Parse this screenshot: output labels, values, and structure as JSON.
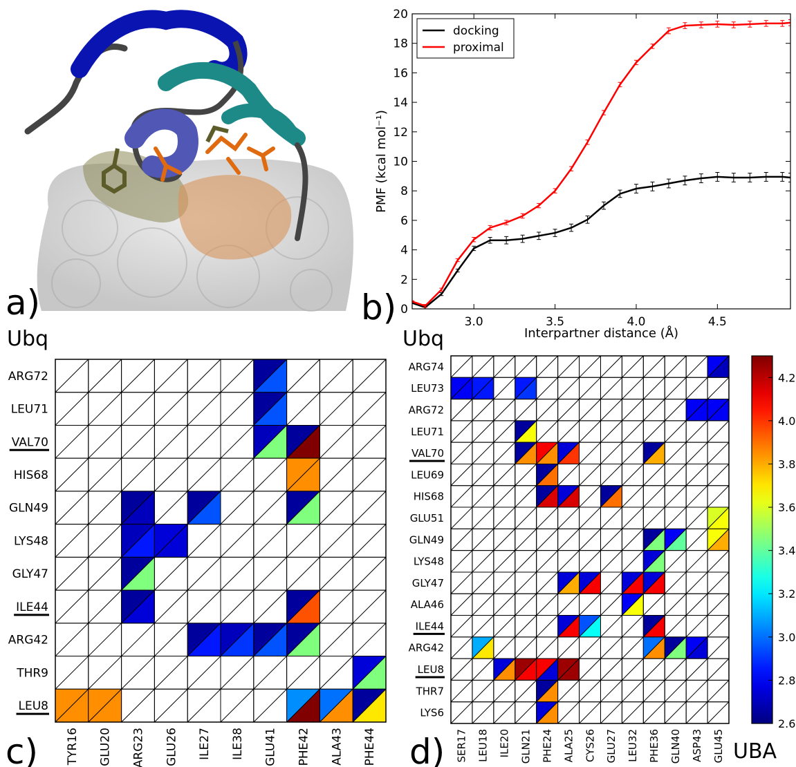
{
  "chart_data": [
    {
      "type": "image",
      "panel_label": "a)"
    },
    {
      "type": "line",
      "panel_label": "b)",
      "xlabel": "Interpartner distance (Å)",
      "ylabel": "PMF (kcal mol⁻¹)",
      "x": [
        2.62,
        2.7,
        2.8,
        2.9,
        3.0,
        3.1,
        3.2,
        3.3,
        3.4,
        3.5,
        3.6,
        3.7,
        3.8,
        3.9,
        4.0,
        4.1,
        4.2,
        4.3,
        4.4,
        4.5,
        4.6,
        4.7,
        4.8,
        4.9,
        4.95
      ],
      "series": [
        {
          "name": "docking",
          "color": "#000000",
          "values": [
            0.4,
            0.1,
            1.0,
            2.6,
            4.1,
            4.65,
            4.65,
            4.75,
            4.95,
            5.15,
            5.5,
            6.05,
            7.0,
            7.8,
            8.15,
            8.3,
            8.5,
            8.7,
            8.85,
            8.95,
            8.9,
            8.9,
            8.95,
            8.95,
            8.9
          ],
          "errors": [
            0.05,
            0.1,
            0.1,
            0.1,
            0.15,
            0.2,
            0.25,
            0.25,
            0.25,
            0.25,
            0.25,
            0.25,
            0.25,
            0.25,
            0.3,
            0.3,
            0.3,
            0.3,
            0.3,
            0.3,
            0.3,
            0.3,
            0.3,
            0.3,
            0.3
          ]
        },
        {
          "name": "proximal",
          "color": "#ff0000",
          "values": [
            0.5,
            0.2,
            1.3,
            3.3,
            4.7,
            5.5,
            5.85,
            6.3,
            7.0,
            8.0,
            9.5,
            11.3,
            13.3,
            15.2,
            16.7,
            17.8,
            18.85,
            19.2,
            19.25,
            19.3,
            19.25,
            19.3,
            19.35,
            19.35,
            19.4
          ],
          "errors": [
            0.05,
            0.1,
            0.1,
            0.1,
            0.15,
            0.15,
            0.15,
            0.15,
            0.15,
            0.15,
            0.15,
            0.15,
            0.15,
            0.15,
            0.15,
            0.15,
            0.2,
            0.2,
            0.2,
            0.2,
            0.2,
            0.2,
            0.2,
            0.2,
            0.2
          ]
        }
      ],
      "xlim": [
        2.62,
        4.95
      ],
      "xticks": [
        {
          "value": 3,
          "label": "3.0"
        },
        3.5,
        {
          "value": 4,
          "label": "4.0"
        },
        4.5
      ],
      "ylim": [
        0,
        20
      ],
      "yticks": [
        0,
        2,
        4,
        6,
        8,
        10,
        12,
        14,
        16,
        18,
        20
      ],
      "legend": "upper left",
      "grid": false
    },
    {
      "type": "triangle-heatmap",
      "panel_label": "c)",
      "ylabel": "Ubq",
      "colormap": "jet",
      "clim": [
        2.6,
        4.3
      ],
      "rows": [
        "ARG72",
        "LEU71",
        "VAL70",
        "HIS68",
        "GLN49",
        "LYS48",
        "GLY47",
        "ILE44",
        "ARG42",
        "THR9",
        "LEU8"
      ],
      "underlined_rows": [
        2,
        7,
        10
      ],
      "columns": [
        "TYR16",
        "GLU20",
        "ARG23",
        "GLU26",
        "ILE27",
        "ILE38",
        "GLU41",
        "PHE42",
        "ALA43",
        "PHE44"
      ],
      "values_upper": [
        [
          null,
          null,
          null,
          null,
          null,
          null,
          2.65,
          null,
          null,
          null
        ],
        [
          null,
          null,
          null,
          null,
          null,
          null,
          2.65,
          null,
          null,
          null
        ],
        [
          null,
          null,
          null,
          null,
          null,
          null,
          2.7,
          2.65,
          null,
          null
        ],
        [
          null,
          null,
          null,
          null,
          null,
          null,
          null,
          3.85,
          null,
          null
        ],
        [
          null,
          null,
          2.65,
          null,
          2.65,
          null,
          null,
          2.65,
          null,
          null
        ],
        [
          null,
          null,
          2.7,
          2.75,
          null,
          null,
          null,
          null,
          null,
          null
        ],
        [
          null,
          null,
          2.65,
          null,
          null,
          null,
          null,
          null,
          null,
          null
        ],
        [
          null,
          null,
          2.65,
          null,
          null,
          null,
          null,
          2.65,
          null,
          null
        ],
        [
          null,
          null,
          null,
          null,
          2.65,
          2.7,
          2.65,
          2.65,
          null,
          null
        ],
        [
          null,
          null,
          null,
          null,
          null,
          null,
          null,
          null,
          null,
          2.75
        ],
        [
          3.85,
          3.85,
          null,
          null,
          null,
          null,
          null,
          3.05,
          3.0,
          2.65
        ]
      ],
      "values_lower": [
        [
          null,
          null,
          null,
          null,
          null,
          null,
          2.95,
          null,
          null,
          null
        ],
        [
          null,
          null,
          null,
          null,
          null,
          null,
          2.95,
          null,
          null,
          null
        ],
        [
          null,
          null,
          null,
          null,
          null,
          null,
          3.45,
          4.3,
          null,
          null
        ],
        [
          null,
          null,
          null,
          null,
          null,
          null,
          null,
          3.85,
          null,
          null
        ],
        [
          null,
          null,
          2.7,
          null,
          2.95,
          null,
          null,
          3.45,
          null,
          null
        ],
        [
          null,
          null,
          2.85,
          2.75,
          null,
          null,
          null,
          null,
          null,
          null
        ],
        [
          null,
          null,
          3.45,
          null,
          null,
          null,
          null,
          null,
          null,
          null
        ],
        [
          null,
          null,
          2.75,
          null,
          null,
          null,
          null,
          3.95,
          null,
          null
        ],
        [
          null,
          null,
          null,
          null,
          2.85,
          2.9,
          2.95,
          3.45,
          null,
          null
        ],
        [
          null,
          null,
          null,
          null,
          null,
          null,
          null,
          null,
          null,
          3.45
        ],
        [
          3.85,
          3.85,
          null,
          null,
          null,
          null,
          null,
          4.3,
          3.85,
          3.7
        ]
      ]
    },
    {
      "type": "triangle-heatmap",
      "panel_label": "d)",
      "ylabel": "Ubq",
      "xlabel": "UBA",
      "colormap": "jet",
      "clim": [
        2.6,
        4.3
      ],
      "rows": [
        "ARG74",
        "LEU73",
        "ARG72",
        "LEU71",
        "VAL70",
        "LEU69",
        "HIS68",
        "GLU51",
        "GLN49",
        "LYS48",
        "GLY47",
        "ALA46",
        "ILE44",
        "ARG42",
        "LEU8",
        "THR7",
        "LYS6"
      ],
      "underlined_rows": [
        4,
        12,
        14
      ],
      "columns": [
        "SER17",
        "LEU18",
        "ILE20",
        "GLN21",
        "PHE24",
        "ALA25",
        "CYS26",
        "GLU27",
        "LEU32",
        "PHE36",
        "GLN40",
        "ASP43",
        "GLU45"
      ],
      "values_upper": [
        [
          null,
          null,
          null,
          null,
          null,
          null,
          null,
          null,
          null,
          null,
          null,
          null,
          2.8
        ],
        [
          2.8,
          2.85,
          null,
          2.85,
          null,
          null,
          null,
          null,
          null,
          null,
          null,
          null,
          null
        ],
        [
          null,
          null,
          null,
          null,
          null,
          null,
          null,
          null,
          null,
          null,
          null,
          2.8,
          2.8
        ],
        [
          null,
          null,
          null,
          2.65,
          null,
          null,
          null,
          null,
          null,
          null,
          null,
          null,
          null
        ],
        [
          null,
          null,
          null,
          2.65,
          4.1,
          2.75,
          null,
          null,
          null,
          2.65,
          null,
          null,
          null
        ],
        [
          null,
          null,
          null,
          null,
          2.65,
          null,
          null,
          null,
          null,
          null,
          null,
          null,
          null
        ],
        [
          null,
          null,
          null,
          null,
          2.65,
          2.75,
          null,
          2.65,
          null,
          null,
          null,
          null,
          null
        ],
        [
          null,
          null,
          null,
          null,
          null,
          null,
          null,
          null,
          null,
          null,
          null,
          null,
          3.6
        ],
        [
          null,
          null,
          null,
          null,
          null,
          null,
          null,
          null,
          null,
          2.65,
          2.8,
          null,
          3.65
        ],
        [
          null,
          null,
          null,
          null,
          null,
          null,
          null,
          null,
          null,
          2.75,
          null,
          null,
          null
        ],
        [
          null,
          null,
          null,
          null,
          null,
          2.75,
          2.75,
          null,
          2.75,
          2.75,
          null,
          null,
          null
        ],
        [
          null,
          null,
          null,
          null,
          null,
          null,
          null,
          null,
          2.8,
          null,
          null,
          null,
          null
        ],
        [
          null,
          null,
          null,
          null,
          null,
          2.75,
          2.95,
          null,
          null,
          2.65,
          null,
          null,
          null
        ],
        [
          null,
          3.1,
          null,
          null,
          null,
          null,
          null,
          null,
          null,
          3.0,
          2.65,
          2.8,
          null
        ],
        [
          null,
          null,
          2.75,
          4.25,
          4.1,
          4.25,
          null,
          null,
          null,
          null,
          null,
          null,
          null
        ],
        [
          null,
          null,
          null,
          null,
          2.65,
          null,
          null,
          null,
          null,
          null,
          null,
          null,
          null
        ],
        [
          null,
          null,
          null,
          null,
          2.75,
          null,
          null,
          null,
          null,
          null,
          null,
          null,
          null
        ]
      ],
      "values_lower": [
        [
          null,
          null,
          null,
          null,
          null,
          null,
          null,
          null,
          null,
          null,
          null,
          null,
          2.7
        ],
        [
          2.8,
          2.85,
          null,
          2.9,
          null,
          null,
          null,
          null,
          null,
          null,
          null,
          null,
          null
        ],
        [
          null,
          null,
          null,
          null,
          null,
          null,
          null,
          null,
          null,
          null,
          null,
          2.8,
          2.8
        ],
        [
          null,
          null,
          null,
          3.65,
          null,
          null,
          null,
          null,
          null,
          null,
          null,
          null,
          null
        ],
        [
          null,
          null,
          null,
          3.85,
          3.85,
          4.0,
          null,
          null,
          null,
          3.8,
          null,
          null,
          null
        ],
        [
          null,
          null,
          null,
          null,
          3.9,
          null,
          null,
          null,
          null,
          null,
          null,
          null,
          null
        ],
        [
          null,
          null,
          null,
          null,
          4.15,
          4.15,
          null,
          3.9,
          null,
          null,
          null,
          null,
          null
        ],
        [
          null,
          null,
          null,
          null,
          null,
          null,
          null,
          null,
          null,
          null,
          null,
          null,
          3.65
        ],
        [
          null,
          null,
          null,
          null,
          null,
          null,
          null,
          null,
          null,
          3.45,
          3.4,
          null,
          3.8
        ],
        [
          null,
          null,
          null,
          null,
          null,
          null,
          null,
          null,
          null,
          3.45,
          null,
          null,
          null
        ],
        [
          null,
          null,
          null,
          null,
          null,
          3.8,
          4.1,
          null,
          4.1,
          4.1,
          null,
          null,
          null
        ],
        [
          null,
          null,
          null,
          null,
          null,
          null,
          null,
          null,
          3.65,
          null,
          null,
          null,
          null
        ],
        [
          null,
          null,
          null,
          null,
          null,
          4.1,
          3.25,
          null,
          null,
          4.1,
          null,
          null,
          null
        ],
        [
          null,
          3.7,
          null,
          null,
          null,
          null,
          null,
          null,
          null,
          3.85,
          3.45,
          2.75,
          null
        ],
        [
          null,
          null,
          3.85,
          4.1,
          2.75,
          4.25,
          null,
          null,
          null,
          null,
          null,
          null,
          null
        ],
        [
          null,
          null,
          null,
          null,
          3.85,
          null,
          null,
          null,
          null,
          null,
          null,
          null,
          null
        ],
        [
          null,
          null,
          null,
          null,
          3.85,
          null,
          null,
          null,
          null,
          null,
          null,
          null,
          null
        ]
      ],
      "colorbar": true,
      "cticks": [
        2.6,
        2.8,
        {
          "value": 3,
          "label": "3.0"
        },
        3.2,
        3.4,
        3.6,
        3.8,
        {
          "value": 4,
          "label": "4.0"
        },
        4.2
      ]
    }
  ]
}
